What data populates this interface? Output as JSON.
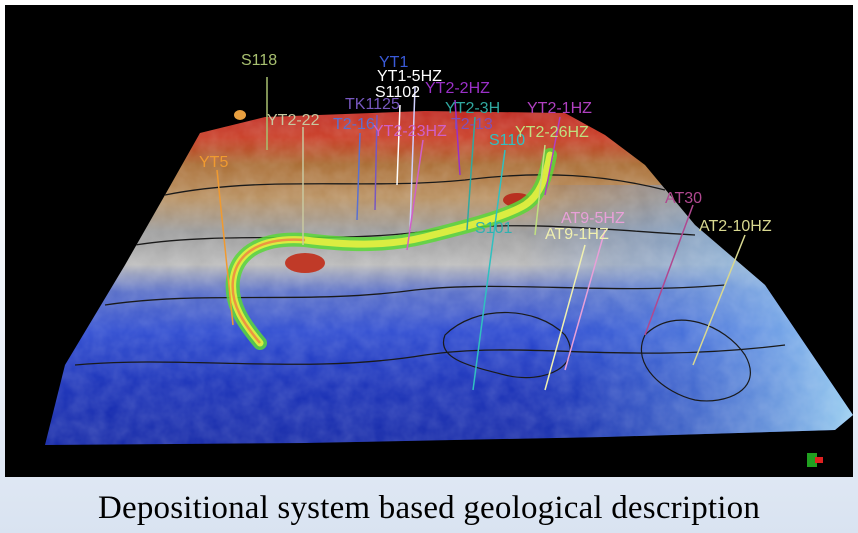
{
  "caption": "Depositional system based geological description",
  "colors": {
    "background": "#000000",
    "deep_blue": "#1a36c8",
    "gray": "#a8a8a8",
    "brown": "#a66a2c",
    "red": "#c8281c",
    "channel_yellow": "#e8f040",
    "channel_green": "#5ad838",
    "light_blue": "#7ec4ef"
  },
  "wells": [
    {
      "id": "s118",
      "label": "S118",
      "color": "#a8c070"
    },
    {
      "id": "yt1",
      "label": "YT1",
      "color": "#3a5ad8"
    },
    {
      "id": "yt1-5hz",
      "label": "YT1-5HZ",
      "color": "#ffffff"
    },
    {
      "id": "s1102",
      "label": "S1102",
      "color": "#ffffff"
    },
    {
      "id": "yt2-2hz",
      "label": "YT2-2HZ",
      "color": "#9a30c8"
    },
    {
      "id": "tk1125",
      "label": "TK1125",
      "color": "#7858c0"
    },
    {
      "id": "yt2-22",
      "label": "YT2-22",
      "color": "#c8c8a0"
    },
    {
      "id": "t2-16",
      "label": "T2-16",
      "color": "#5a70d0"
    },
    {
      "id": "yt2-23hz",
      "label": "YT2-23HZ",
      "color": "#d060c8"
    },
    {
      "id": "yt2-3h",
      "label": "YT2-3H",
      "color": "#30a8a0"
    },
    {
      "id": "yt2-1hz",
      "label": "YT2-1HZ",
      "color": "#b040c0"
    },
    {
      "id": "t2-13",
      "label": "T2-13",
      "color": "#8050b8"
    },
    {
      "id": "s110",
      "label": "S110",
      "color": "#30c0c0"
    },
    {
      "id": "yt2-26hz",
      "label": "YT2-26HZ",
      "color": "#c0e080"
    },
    {
      "id": "yt5",
      "label": "YT5",
      "color": "#f09a30"
    },
    {
      "id": "s101",
      "label": "S101",
      "color": "#30b0b0"
    },
    {
      "id": "at9-5hz",
      "label": "AT9-5HZ",
      "color": "#e8a0d8"
    },
    {
      "id": "at9-1hz",
      "label": "AT9-1HZ",
      "color": "#f0f0b0"
    },
    {
      "id": "at30",
      "label": "AT30",
      "color": "#b04890"
    },
    {
      "id": "at2-10hz",
      "label": "AT2-10HZ",
      "color": "#d8d890"
    }
  ]
}
